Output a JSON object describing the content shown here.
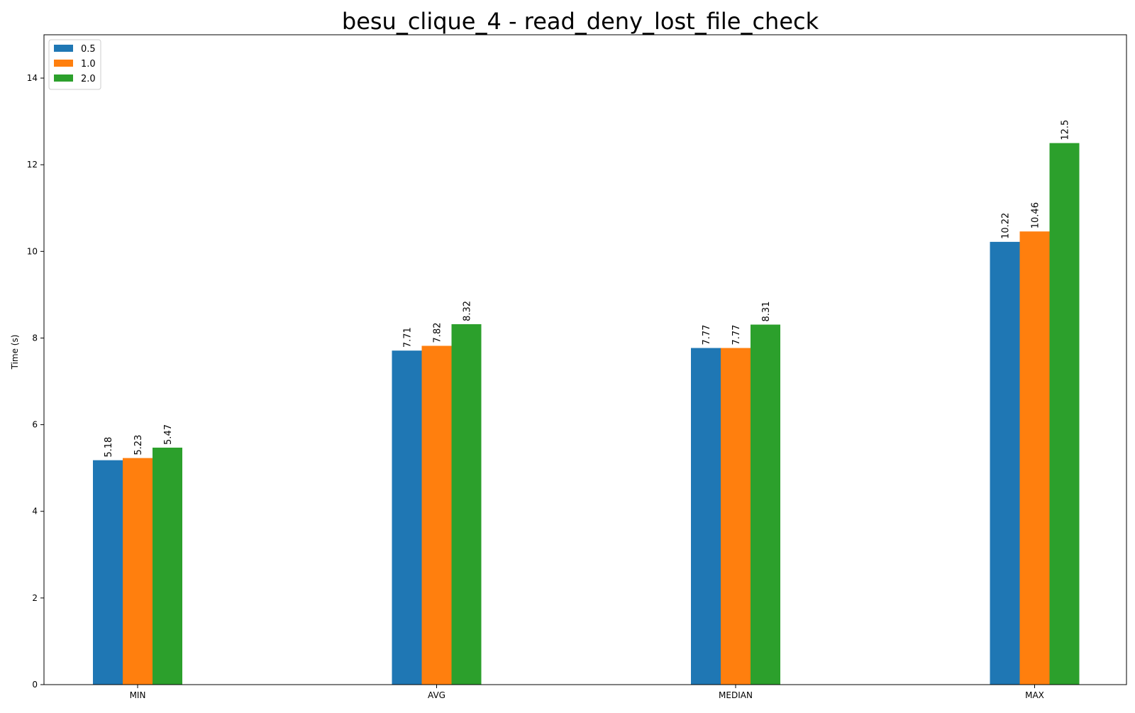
{
  "chart_data": {
    "type": "bar",
    "title": "besu_clique_4 - read_deny_lost_file_check",
    "xlabel": "",
    "ylabel": "Time (s)",
    "categories": [
      "MIN",
      "AVG",
      "MEDIAN",
      "MAX"
    ],
    "series": [
      {
        "name": "0.5",
        "values": [
          5.18,
          7.71,
          7.77,
          10.22
        ],
        "color": "#1f77b4"
      },
      {
        "name": "1.0",
        "values": [
          5.23,
          7.82,
          7.77,
          10.46
        ],
        "color": "#ff7f0e"
      },
      {
        "name": "2.0",
        "values": [
          5.47,
          8.32,
          8.31,
          12.5
        ],
        "color": "#2ca02c"
      }
    ],
    "ylim": [
      0,
      15
    ],
    "yticks": [
      "0",
      "2",
      "4",
      "6",
      "8",
      "10",
      "12",
      "14"
    ],
    "grid": false,
    "legend_position": "top-left"
  }
}
